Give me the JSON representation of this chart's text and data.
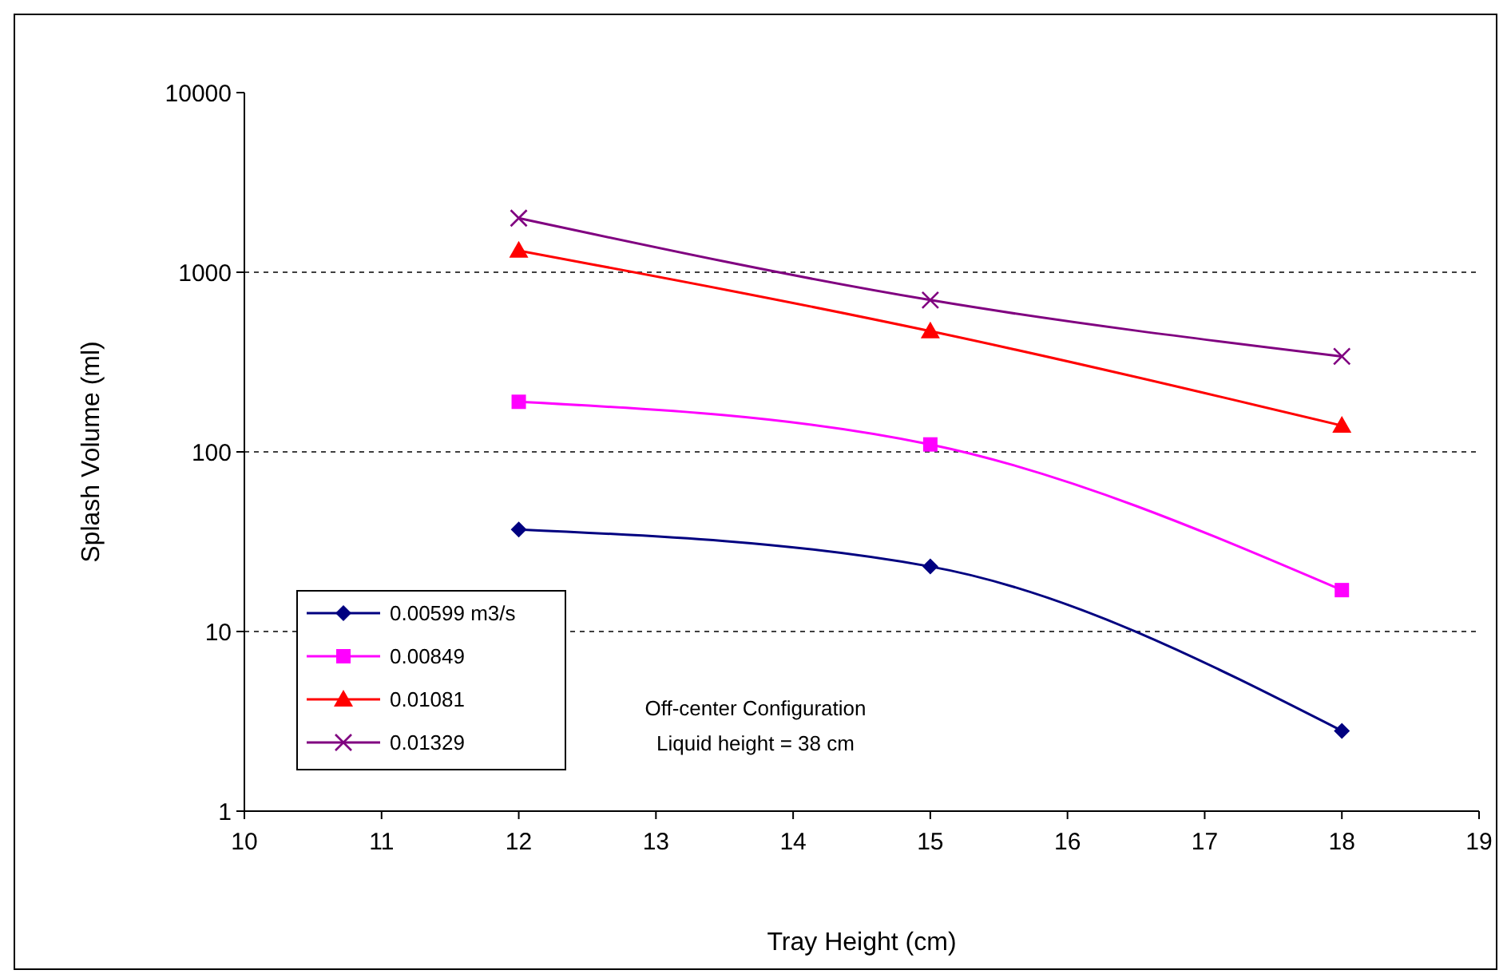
{
  "chart_data": {
    "type": "line",
    "xlabel": "Tray Height (cm)",
    "ylabel": "Splash Volume (ml)",
    "log": "y",
    "x": [
      12,
      15,
      18
    ],
    "xlim": [
      10,
      19
    ],
    "xticks": [
      10,
      11,
      12,
      13,
      14,
      15,
      16,
      17,
      18,
      19
    ],
    "ylim": [
      1,
      10000
    ],
    "yticks": [
      1,
      10,
      100,
      1000,
      10000
    ],
    "grid": "y",
    "legend": "bottom left",
    "series": [
      {
        "name": "0.00599 m3/s",
        "color": "#000080",
        "marker": "diamond",
        "values": [
          37,
          23,
          2.8
        ]
      },
      {
        "name": "0.00849",
        "color": "#ff00ff",
        "marker": "square",
        "values": [
          190,
          110,
          17
        ]
      },
      {
        "name": "0.01081",
        "color": "#ff0000",
        "marker": "triangle",
        "values": [
          1320,
          470,
          140
        ]
      },
      {
        "name": "0.01329",
        "color": "#800080",
        "marker": "cross",
        "values": [
          2000,
          700,
          340
        ]
      }
    ],
    "annotations": [
      "Off-center Configuration",
      "Liquid height = 38 cm"
    ]
  }
}
